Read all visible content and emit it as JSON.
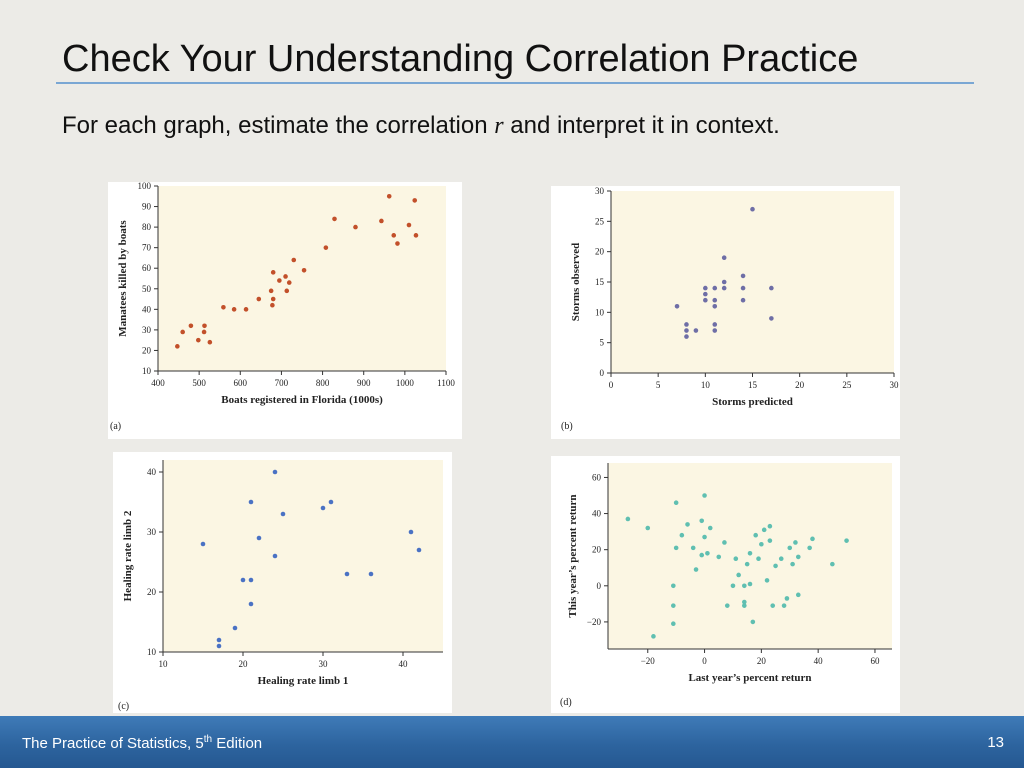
{
  "slide": {
    "title": "Check Your Understanding Correlation Practice",
    "subtitle_before": "For each graph, estimate the correlation ",
    "subtitle_var": "r",
    "subtitle_after": " and interpret it in context.",
    "footer_main": "The Practice of Statistics, 5",
    "footer_sup": "th",
    "footer_tail": " Edition",
    "page_number": "13"
  },
  "colors": {
    "footer_bar": "#2d649f",
    "title_rule": "#7aa7d4",
    "plot_background": "#fbf6e3",
    "series_a": "#c2502a",
    "series_b": "#6e6ea6",
    "series_c": "#4a72c4",
    "series_d": "#5fbfb1"
  },
  "chart_data": [
    {
      "type": "scatter",
      "panel_label": "(a)",
      "xlabel": "Boats registered in Florida (1000s)",
      "ylabel": "Manatees killed by boats",
      "xlim": [
        400,
        1100
      ],
      "ylim": [
        10,
        100
      ],
      "xticks": [
        400,
        500,
        600,
        700,
        800,
        900,
        1000,
        1100
      ],
      "yticks": [
        10,
        20,
        30,
        40,
        50,
        60,
        70,
        80,
        90,
        100
      ],
      "grid": false,
      "color": "#c2502a",
      "points": [
        [
          447,
          22
        ],
        [
          460,
          29
        ],
        [
          480,
          32
        ],
        [
          498,
          25
        ],
        [
          512,
          29
        ],
        [
          513,
          32
        ],
        [
          526,
          24
        ],
        [
          559,
          41
        ],
        [
          585,
          40
        ],
        [
          614,
          40
        ],
        [
          645,
          45
        ],
        [
          675,
          49
        ],
        [
          678,
          42
        ],
        [
          680,
          45
        ],
        [
          680,
          58
        ],
        [
          695,
          54
        ],
        [
          710,
          56
        ],
        [
          713,
          49
        ],
        [
          719,
          53
        ],
        [
          730,
          64
        ],
        [
          755,
          59
        ],
        [
          808,
          70
        ],
        [
          829,
          84
        ],
        [
          880,
          80
        ],
        [
          943,
          83
        ],
        [
          962,
          95
        ],
        [
          973,
          76
        ],
        [
          982,
          72
        ],
        [
          1010,
          81
        ],
        [
          1024,
          93
        ],
        [
          1027,
          76
        ]
      ]
    },
    {
      "type": "scatter",
      "panel_label": "(b)",
      "xlabel": "Storms predicted",
      "ylabel": "Storms observed",
      "xlim": [
        0,
        30
      ],
      "ylim": [
        0,
        30
      ],
      "xticks": [
        0,
        5,
        10,
        15,
        20,
        25,
        30
      ],
      "yticks": [
        0,
        5,
        10,
        15,
        20,
        25,
        30
      ],
      "grid": false,
      "color": "#6e6ea6",
      "points": [
        [
          7,
          11
        ],
        [
          8,
          6
        ],
        [
          8,
          7
        ],
        [
          8,
          8
        ],
        [
          9,
          7
        ],
        [
          10,
          12
        ],
        [
          10,
          13
        ],
        [
          10,
          14
        ],
        [
          11,
          7
        ],
        [
          11,
          8
        ],
        [
          11,
          11
        ],
        [
          11,
          12
        ],
        [
          11,
          14
        ],
        [
          12,
          14
        ],
        [
          12,
          15
        ],
        [
          12,
          19
        ],
        [
          14,
          12
        ],
        [
          14,
          14
        ],
        [
          14,
          16
        ],
        [
          15,
          27
        ],
        [
          17,
          9
        ],
        [
          17,
          14
        ]
      ]
    },
    {
      "type": "scatter",
      "panel_label": "(c)",
      "xlabel": "Healing rate limb 1",
      "ylabel": "Healing rate limb 2",
      "xlim": [
        10,
        45
      ],
      "ylim": [
        10,
        42
      ],
      "xticks": [
        10,
        20,
        30,
        40
      ],
      "yticks": [
        10,
        20,
        30,
        40
      ],
      "grid": false,
      "color": "#4a72c4",
      "points": [
        [
          15,
          28
        ],
        [
          17,
          11
        ],
        [
          17,
          12
        ],
        [
          19,
          14
        ],
        [
          20,
          22
        ],
        [
          21,
          18
        ],
        [
          21,
          22
        ],
        [
          21,
          35
        ],
        [
          22,
          29
        ],
        [
          24,
          26
        ],
        [
          24,
          40
        ],
        [
          25,
          33
        ],
        [
          30,
          34
        ],
        [
          31,
          35
        ],
        [
          33,
          23
        ],
        [
          36,
          23
        ],
        [
          41,
          30
        ],
        [
          42,
          27
        ]
      ]
    },
    {
      "type": "scatter",
      "panel_label": "(d)",
      "xlabel": "Last year’s percent return",
      "ylabel": "This year’s percent return",
      "xlim": [
        -34,
        66
      ],
      "ylim": [
        -35,
        68
      ],
      "xticks": [
        -20,
        0,
        20,
        40,
        60
      ],
      "yticks": [
        -20,
        0,
        20,
        40,
        60
      ],
      "grid": false,
      "color": "#5fbfb1",
      "points": [
        [
          -27,
          37
        ],
        [
          -20,
          32
        ],
        [
          -18,
          -28
        ],
        [
          -11,
          -21
        ],
        [
          -11,
          -11
        ],
        [
          -11,
          0
        ],
        [
          -10,
          21
        ],
        [
          -10,
          46
        ],
        [
          -8,
          28
        ],
        [
          -6,
          34
        ],
        [
          -4,
          21
        ],
        [
          -3,
          9
        ],
        [
          -1,
          36
        ],
        [
          -1,
          17
        ],
        [
          0,
          50
        ],
        [
          0,
          27
        ],
        [
          1,
          18
        ],
        [
          2,
          32
        ],
        [
          5,
          16
        ],
        [
          7,
          24
        ],
        [
          8,
          -11
        ],
        [
          10,
          0
        ],
        [
          11,
          15
        ],
        [
          12,
          6
        ],
        [
          14,
          0
        ],
        [
          14,
          -9
        ],
        [
          14,
          -11
        ],
        [
          15,
          12
        ],
        [
          16,
          1
        ],
        [
          16,
          18
        ],
        [
          17,
          -20
        ],
        [
          18,
          28
        ],
        [
          19,
          15
        ],
        [
          20,
          23
        ],
        [
          21,
          31
        ],
        [
          22,
          3
        ],
        [
          23,
          33
        ],
        [
          23,
          25
        ],
        [
          24,
          -11
        ],
        [
          25,
          11
        ],
        [
          27,
          15
        ],
        [
          28,
          -11
        ],
        [
          29,
          -7
        ],
        [
          30,
          21
        ],
        [
          31,
          12
        ],
        [
          32,
          24
        ],
        [
          33,
          -5
        ],
        [
          33,
          16
        ],
        [
          37,
          21
        ],
        [
          38,
          26
        ],
        [
          45,
          12
        ],
        [
          50,
          25
        ]
      ]
    }
  ]
}
